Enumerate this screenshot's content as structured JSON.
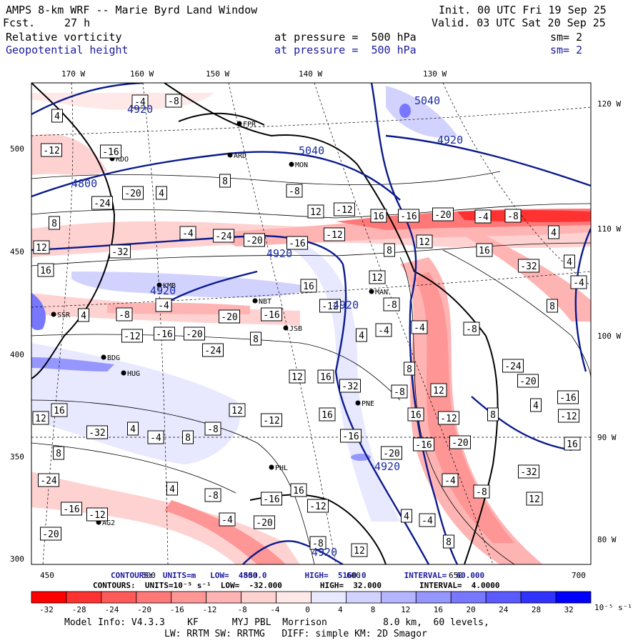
{
  "header": {
    "title": "AMPS 8-km WRF -- Marie Byrd Land Window",
    "fcst_label": "Fcst.",
    "fcst_hours": "27 h",
    "init": "Init. 00 UTC Fri 19 Sep 25",
    "valid": "Valid. 03 UTC Sat 20 Sep 25",
    "field1_name": "Relative vorticity",
    "field1_level": "at pressure =  500 hPa",
    "field1_sm": "sm= 2",
    "field2_name": "Geopotential height",
    "field2_level": "at pressure =  500 hPa",
    "field2_sm": "sm= 2"
  },
  "map": {
    "top_lon_labels": [
      "170 W",
      "160 W",
      "150 W",
      "140 W",
      "130 W"
    ],
    "right_lon_labels": [
      "120 W",
      "110 W",
      "100 W",
      "90 W",
      "80 W"
    ],
    "left_y_ticks": [
      "500",
      "450",
      "400",
      "350",
      "300"
    ],
    "bottom_x_ticks": [
      "450",
      "500",
      "550",
      "600",
      "650",
      "700"
    ],
    "height_contour_labels": [
      "4800",
      "4920",
      "5040",
      "5040",
      "4920",
      "4920",
      "4920",
      "4920",
      "4920",
      "4920"
    ],
    "vorticity_box_labels": [
      "-4",
      "-8",
      "4",
      "-12",
      "-16",
      "-20",
      "-24",
      "8",
      "12",
      "16",
      "-32",
      "4",
      "-4",
      "8",
      "-8",
      "12",
      "-12",
      "16",
      "-16",
      "-20"
    ],
    "stations": [
      "RDO",
      "ARD",
      "MON",
      "FPR",
      "NBT",
      "JSB",
      "MAN",
      "PNE",
      "PHL",
      "KMB",
      "BDG",
      "HUG",
      "AG2",
      "SSR"
    ]
  },
  "contour_info": {
    "height_line": "CONTOURS:  UNITS=m   LOW=  4800.0        HIGH=  5160.0        INTERVAL=  60.000",
    "vort_line": "CONTOURS:  UNITS=10⁻⁵ s⁻¹  LOW=  -32.000        HIGH=  32.000        INTERVAL=  4.0000"
  },
  "colorbar": {
    "ticks": [
      "-32",
      "-28",
      "-24",
      "-20",
      "-16",
      "-12",
      "-8",
      "-4",
      "0",
      "4",
      "8",
      "12",
      "16",
      "20",
      "24",
      "28",
      "32"
    ],
    "units": "10⁻⁵ s⁻¹",
    "colors": [
      "#ff0000",
      "#ff3232",
      "#ff5a5a",
      "#ff7878",
      "#ff9696",
      "#ffb4b4",
      "#ffd2d2",
      "#ffe8e8",
      "#ffffff",
      "#e8e8ff",
      "#d2d2ff",
      "#b4b4ff",
      "#9696ff",
      "#7878ff",
      "#5a5aff",
      "#3232ff",
      "#0000ff"
    ]
  },
  "footer": {
    "line1": "Model Info: V4.3.3    KF      MYJ PBL  Morrison          8.0 km,  60 levels,",
    "line2": "LW: RRTM SW: RRTMG   DIFF: simple KM: 2D Smagor"
  }
}
